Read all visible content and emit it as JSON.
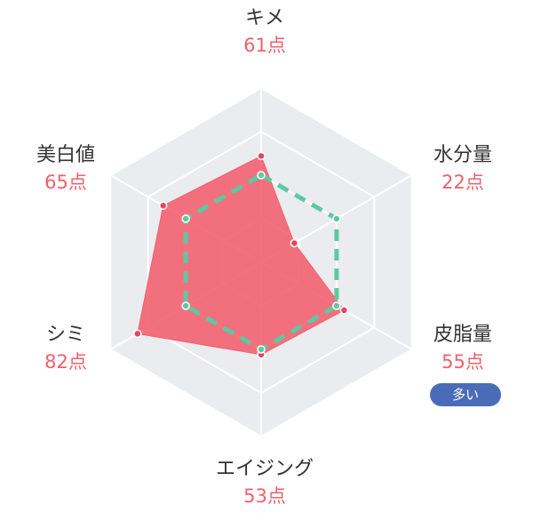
{
  "chart_data": {
    "type": "radar",
    "title": "",
    "rmax": 100,
    "unit": "点",
    "axes": [
      {
        "name": "キメ",
        "value": 61,
        "value_label": "61点"
      },
      {
        "name": "水分量",
        "value": 22,
        "value_label": "22点"
      },
      {
        "name": "皮脂量",
        "value": 55,
        "value_label": "55点",
        "badge": "多い"
      },
      {
        "name": "エイジング",
        "value": 53,
        "value_label": "53点"
      },
      {
        "name": "シミ",
        "value": 82,
        "value_label": "82点"
      },
      {
        "name": "美白値",
        "value": 65,
        "value_label": "65点"
      }
    ],
    "reference": [
      50,
      50,
      50,
      50,
      50,
      50
    ],
    "grid_levels": 4,
    "colors": {
      "score_fill": "#f25f6d",
      "score_point": "#e8475a",
      "reference_line": "#5cc9a0",
      "grid_bg": "#eaecf0",
      "grid_line": "#ffffff",
      "value_text": "#f0606b",
      "badge_bg": "#4a6cb8"
    }
  }
}
